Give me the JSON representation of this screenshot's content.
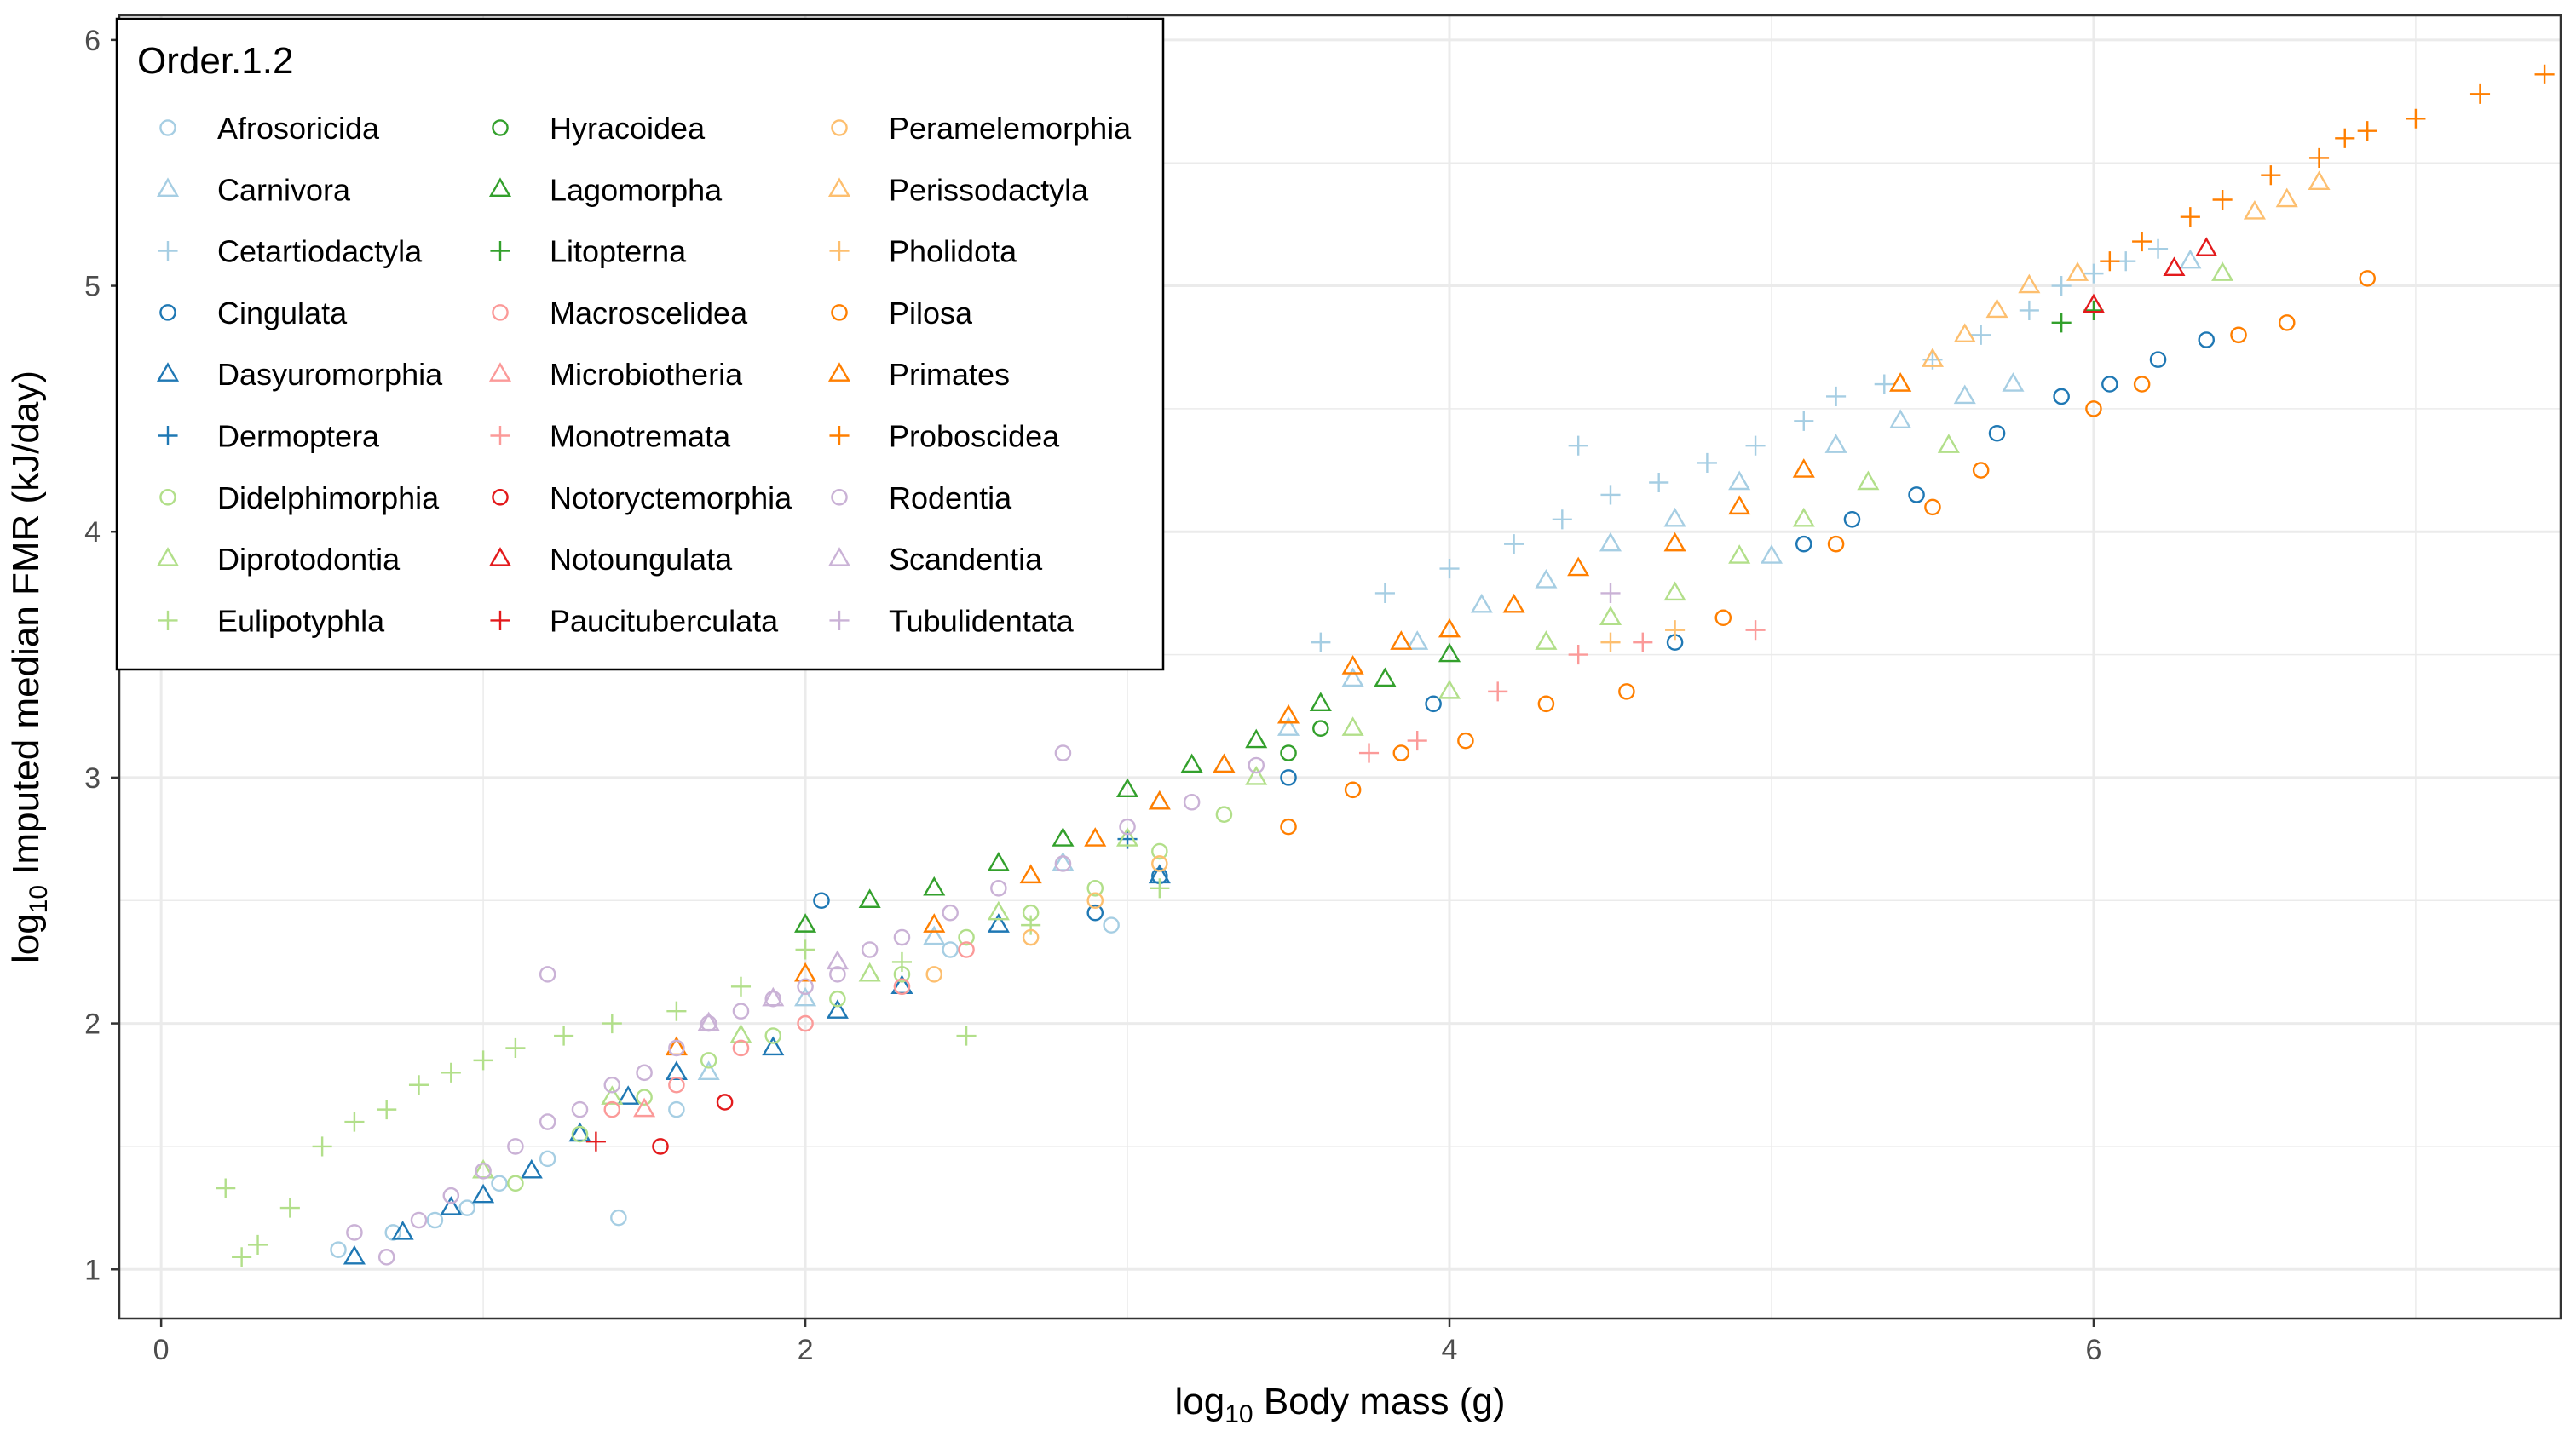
{
  "chart_data": {
    "type": "scatter",
    "title": "",
    "xlabel": {
      "prefix": "log",
      "subscript": "10",
      "text": " Body mass (g)"
    },
    "ylabel": {
      "prefix": "log",
      "subscript": "10",
      "text": " Imputed median FMR (kJ/day)"
    },
    "xlim": [
      -0.13,
      7.45
    ],
    "ylim": [
      0.8,
      6.1
    ],
    "x_ticks": [
      0,
      2,
      4,
      6
    ],
    "y_ticks": [
      1,
      2,
      3,
      4,
      5,
      6
    ],
    "x_tick_labels": [
      "0",
      "2",
      "4",
      "6"
    ],
    "y_tick_labels": [
      "1",
      "2",
      "3",
      "4",
      "5",
      "6"
    ],
    "grid": true,
    "legend": {
      "title": "Order.1.2",
      "placement": "top-left",
      "columns": 3
    },
    "series": [
      {
        "name": "Afrosoricida",
        "color": "#A6CEE3",
        "shape": "circle",
        "points": [
          [
            0.55,
            1.08
          ],
          [
            0.72,
            1.15
          ],
          [
            0.85,
            1.2
          ],
          [
            0.95,
            1.25
          ],
          [
            1.05,
            1.35
          ],
          [
            1.2,
            1.45
          ],
          [
            1.42,
            1.21
          ],
          [
            1.6,
            1.65
          ],
          [
            2.45,
            2.3
          ],
          [
            2.95,
            2.4
          ]
        ]
      },
      {
        "name": "Carnivora",
        "color": "#A6CEE3",
        "shape": "triangle",
        "points": [
          [
            1.7,
            1.8
          ],
          [
            2.0,
            2.1
          ],
          [
            2.4,
            2.35
          ],
          [
            2.8,
            2.65
          ],
          [
            3.1,
            2.9
          ],
          [
            3.3,
            3.05
          ],
          [
            3.5,
            3.2
          ],
          [
            3.7,
            3.4
          ],
          [
            3.9,
            3.55
          ],
          [
            4.1,
            3.7
          ],
          [
            4.3,
            3.8
          ],
          [
            4.5,
            3.95
          ],
          [
            4.7,
            4.05
          ],
          [
            4.9,
            4.2
          ],
          [
            5.0,
            3.9
          ],
          [
            5.2,
            4.35
          ],
          [
            5.4,
            4.45
          ],
          [
            5.6,
            4.55
          ],
          [
            5.75,
            4.6
          ],
          [
            6.3,
            5.1
          ]
        ]
      },
      {
        "name": "Cetartiodactyla",
        "color": "#A6CEE3",
        "shape": "cross",
        "points": [
          [
            3.6,
            3.55
          ],
          [
            3.8,
            3.75
          ],
          [
            4.0,
            3.85
          ],
          [
            4.2,
            3.95
          ],
          [
            4.35,
            4.05
          ],
          [
            4.5,
            4.15
          ],
          [
            4.65,
            4.2
          ],
          [
            4.8,
            4.28
          ],
          [
            4.95,
            4.35
          ],
          [
            5.1,
            4.45
          ],
          [
            5.2,
            4.55
          ],
          [
            5.35,
            4.6
          ],
          [
            5.5,
            4.7
          ],
          [
            5.65,
            4.8
          ],
          [
            5.8,
            4.9
          ],
          [
            5.9,
            5.0
          ],
          [
            6.0,
            5.05
          ],
          [
            6.1,
            5.1
          ],
          [
            6.2,
            5.15
          ],
          [
            4.4,
            4.35
          ]
        ]
      },
      {
        "name": "Cingulata",
        "color": "#1F78B4",
        "shape": "circle",
        "points": [
          [
            2.05,
            2.5
          ],
          [
            2.9,
            2.45
          ],
          [
            3.1,
            2.6
          ],
          [
            3.5,
            3.0
          ],
          [
            3.95,
            3.3
          ],
          [
            4.7,
            3.55
          ],
          [
            5.1,
            3.95
          ],
          [
            5.25,
            4.05
          ],
          [
            5.45,
            4.15
          ],
          [
            5.7,
            4.4
          ],
          [
            5.9,
            4.55
          ],
          [
            6.05,
            4.6
          ],
          [
            6.2,
            4.7
          ],
          [
            6.35,
            4.78
          ]
        ]
      },
      {
        "name": "Dasyuromorphia",
        "color": "#1F78B4",
        "shape": "triangle",
        "points": [
          [
            0.6,
            1.05
          ],
          [
            0.75,
            1.15
          ],
          [
            0.9,
            1.25
          ],
          [
            1.0,
            1.3
          ],
          [
            1.15,
            1.4
          ],
          [
            1.3,
            1.55
          ],
          [
            1.45,
            1.7
          ],
          [
            1.6,
            1.8
          ],
          [
            1.9,
            1.9
          ],
          [
            2.1,
            2.05
          ],
          [
            2.3,
            2.15
          ],
          [
            2.6,
            2.4
          ],
          [
            3.1,
            2.6
          ]
        ]
      },
      {
        "name": "Dermoptera",
        "color": "#1F78B4",
        "shape": "cross",
        "points": [
          [
            3.0,
            2.75
          ]
        ]
      },
      {
        "name": "Didelphimorphia",
        "color": "#B2DF8A",
        "shape": "circle",
        "points": [
          [
            1.1,
            1.35
          ],
          [
            1.3,
            1.55
          ],
          [
            1.5,
            1.7
          ],
          [
            1.7,
            1.85
          ],
          [
            1.9,
            1.95
          ],
          [
            2.1,
            2.1
          ],
          [
            2.3,
            2.2
          ],
          [
            2.5,
            2.35
          ],
          [
            2.7,
            2.45
          ],
          [
            2.9,
            2.55
          ],
          [
            3.1,
            2.7
          ],
          [
            3.3,
            2.85
          ]
        ]
      },
      {
        "name": "Diprotodontia",
        "color": "#B2DF8A",
        "shape": "triangle",
        "points": [
          [
            1.0,
            1.4
          ],
          [
            1.4,
            1.7
          ],
          [
            1.8,
            1.95
          ],
          [
            2.2,
            2.2
          ],
          [
            2.6,
            2.45
          ],
          [
            3.0,
            2.75
          ],
          [
            3.4,
            3.0
          ],
          [
            3.7,
            3.2
          ],
          [
            4.0,
            3.35
          ],
          [
            4.3,
            3.55
          ],
          [
            4.5,
            3.65
          ],
          [
            4.7,
            3.75
          ],
          [
            4.9,
            3.9
          ],
          [
            5.1,
            4.05
          ],
          [
            5.3,
            4.2
          ],
          [
            5.55,
            4.35
          ],
          [
            6.4,
            5.05
          ]
        ]
      },
      {
        "name": "Eulipotyphla",
        "color": "#B2DF8A",
        "shape": "cross",
        "points": [
          [
            0.2,
            1.33
          ],
          [
            0.25,
            1.05
          ],
          [
            0.3,
            1.1
          ],
          [
            0.4,
            1.25
          ],
          [
            0.5,
            1.5
          ],
          [
            0.6,
            1.6
          ],
          [
            0.7,
            1.65
          ],
          [
            0.8,
            1.75
          ],
          [
            0.9,
            1.8
          ],
          [
            1.0,
            1.85
          ],
          [
            1.1,
            1.9
          ],
          [
            1.25,
            1.95
          ],
          [
            1.4,
            2.0
          ],
          [
            1.6,
            2.05
          ],
          [
            1.8,
            2.15
          ],
          [
            2.0,
            2.3
          ],
          [
            2.3,
            2.25
          ],
          [
            2.5,
            1.95
          ],
          [
            2.7,
            2.4
          ],
          [
            3.1,
            2.55
          ]
        ]
      },
      {
        "name": "Hyracoidea",
        "color": "#33A02C",
        "shape": "circle",
        "points": [
          [
            3.5,
            3.1
          ],
          [
            3.6,
            3.2
          ]
        ]
      },
      {
        "name": "Lagomorpha",
        "color": "#33A02C",
        "shape": "triangle",
        "points": [
          [
            2.0,
            2.4
          ],
          [
            2.2,
            2.5
          ],
          [
            2.4,
            2.55
          ],
          [
            2.6,
            2.65
          ],
          [
            2.8,
            2.75
          ],
          [
            3.0,
            2.95
          ],
          [
            3.2,
            3.05
          ],
          [
            3.4,
            3.15
          ],
          [
            3.6,
            3.3
          ],
          [
            3.8,
            3.4
          ],
          [
            4.0,
            3.5
          ]
        ]
      },
      {
        "name": "Litopterna",
        "color": "#33A02C",
        "shape": "cross",
        "points": [
          [
            5.9,
            4.85
          ],
          [
            6.0,
            4.9
          ]
        ]
      },
      {
        "name": "Macroscelidea",
        "color": "#FB9A99",
        "shape": "circle",
        "points": [
          [
            1.4,
            1.65
          ],
          [
            1.6,
            1.75
          ],
          [
            1.8,
            1.9
          ],
          [
            2.0,
            2.0
          ],
          [
            2.3,
            2.15
          ],
          [
            2.5,
            2.3
          ]
        ]
      },
      {
        "name": "Microbiotheria",
        "color": "#FB9A99",
        "shape": "triangle",
        "points": [
          [
            1.5,
            1.65
          ]
        ]
      },
      {
        "name": "Monotremata",
        "color": "#FB9A99",
        "shape": "cross",
        "points": [
          [
            3.75,
            3.1
          ],
          [
            3.9,
            3.15
          ],
          [
            4.15,
            3.35
          ],
          [
            4.4,
            3.5
          ],
          [
            4.6,
            3.55
          ],
          [
            4.95,
            3.6
          ]
        ]
      },
      {
        "name": "Notoryctemorphia",
        "color": "#E31A1C",
        "shape": "circle",
        "points": [
          [
            1.55,
            1.5
          ],
          [
            1.75,
            1.68
          ]
        ]
      },
      {
        "name": "Notoungulata",
        "color": "#E31A1C",
        "shape": "triangle",
        "points": [
          [
            6.0,
            4.92
          ],
          [
            6.25,
            5.07
          ],
          [
            6.35,
            5.15
          ]
        ]
      },
      {
        "name": "Paucituberculata",
        "color": "#E31A1C",
        "shape": "cross",
        "points": [
          [
            1.35,
            1.52
          ]
        ]
      },
      {
        "name": "Peramelemorphia",
        "color": "#FDBF6F",
        "shape": "circle",
        "points": [
          [
            2.4,
            2.2
          ],
          [
            2.7,
            2.35
          ],
          [
            2.9,
            2.5
          ],
          [
            3.1,
            2.65
          ]
        ]
      },
      {
        "name": "Perissodactyla",
        "color": "#FDBF6F",
        "shape": "triangle",
        "points": [
          [
            5.4,
            4.6
          ],
          [
            5.5,
            4.7
          ],
          [
            5.6,
            4.8
          ],
          [
            5.7,
            4.9
          ],
          [
            5.8,
            5.0
          ],
          [
            5.95,
            5.05
          ],
          [
            6.5,
            5.3
          ],
          [
            6.6,
            5.35
          ],
          [
            6.7,
            5.42
          ]
        ]
      },
      {
        "name": "Pholidota",
        "color": "#FDBF6F",
        "shape": "cross",
        "points": [
          [
            4.5,
            3.55
          ],
          [
            4.7,
            3.6
          ]
        ]
      },
      {
        "name": "Pilosa",
        "color": "#FF7F00",
        "shape": "circle",
        "points": [
          [
            3.5,
            2.8
          ],
          [
            3.7,
            2.95
          ],
          [
            3.85,
            3.1
          ],
          [
            4.05,
            3.15
          ],
          [
            4.3,
            3.3
          ],
          [
            4.55,
            3.35
          ],
          [
            4.85,
            3.65
          ],
          [
            5.2,
            3.95
          ],
          [
            5.5,
            4.1
          ],
          [
            5.65,
            4.25
          ],
          [
            6.0,
            4.5
          ],
          [
            6.15,
            4.6
          ],
          [
            6.45,
            4.8
          ],
          [
            6.6,
            4.85
          ],
          [
            6.85,
            5.03
          ]
        ]
      },
      {
        "name": "Primates",
        "color": "#FF7F00",
        "shape": "triangle",
        "points": [
          [
            1.6,
            1.9
          ],
          [
            2.0,
            2.2
          ],
          [
            2.4,
            2.4
          ],
          [
            2.7,
            2.6
          ],
          [
            2.9,
            2.75
          ],
          [
            3.1,
            2.9
          ],
          [
            3.3,
            3.05
          ],
          [
            3.5,
            3.25
          ],
          [
            3.7,
            3.45
          ],
          [
            3.85,
            3.55
          ],
          [
            4.0,
            3.6
          ],
          [
            4.2,
            3.7
          ],
          [
            4.4,
            3.85
          ],
          [
            4.7,
            3.95
          ],
          [
            4.9,
            4.1
          ],
          [
            5.1,
            4.25
          ],
          [
            5.4,
            4.6
          ]
        ]
      },
      {
        "name": "Proboscidea",
        "color": "#FF7F00",
        "shape": "cross",
        "points": [
          [
            6.05,
            5.1
          ],
          [
            6.15,
            5.18
          ],
          [
            6.3,
            5.28
          ],
          [
            6.4,
            5.35
          ],
          [
            6.55,
            5.45
          ],
          [
            6.7,
            5.52
          ],
          [
            6.78,
            5.6
          ],
          [
            6.85,
            5.63
          ],
          [
            7.0,
            5.68
          ],
          [
            7.2,
            5.78
          ],
          [
            7.4,
            5.86
          ]
        ]
      },
      {
        "name": "Rodentia",
        "color": "#CAB2D6",
        "shape": "circle",
        "points": [
          [
            0.6,
            1.15
          ],
          [
            0.7,
            1.05
          ],
          [
            0.8,
            1.2
          ],
          [
            0.9,
            1.3
          ],
          [
            1.0,
            1.4
          ],
          [
            1.1,
            1.5
          ],
          [
            1.2,
            1.6
          ],
          [
            1.3,
            1.65
          ],
          [
            1.4,
            1.75
          ],
          [
            1.5,
            1.8
          ],
          [
            1.6,
            1.9
          ],
          [
            1.7,
            2.0
          ],
          [
            1.8,
            2.05
          ],
          [
            1.9,
            2.1
          ],
          [
            2.0,
            2.15
          ],
          [
            2.1,
            2.2
          ],
          [
            2.2,
            2.3
          ],
          [
            2.3,
            2.35
          ],
          [
            2.45,
            2.45
          ],
          [
            2.6,
            2.55
          ],
          [
            2.8,
            2.65
          ],
          [
            3.0,
            2.8
          ],
          [
            3.2,
            2.9
          ],
          [
            3.4,
            3.05
          ],
          [
            2.8,
            3.1
          ],
          [
            1.2,
            2.2
          ]
        ]
      },
      {
        "name": "Scandentia",
        "color": "#CAB2D6",
        "shape": "triangle",
        "points": [
          [
            1.7,
            2.0
          ],
          [
            1.9,
            2.1
          ],
          [
            2.1,
            2.25
          ]
        ]
      },
      {
        "name": "Tubulidentata",
        "color": "#CAB2D6",
        "shape": "cross",
        "points": [
          [
            4.5,
            3.75
          ]
        ]
      }
    ]
  }
}
